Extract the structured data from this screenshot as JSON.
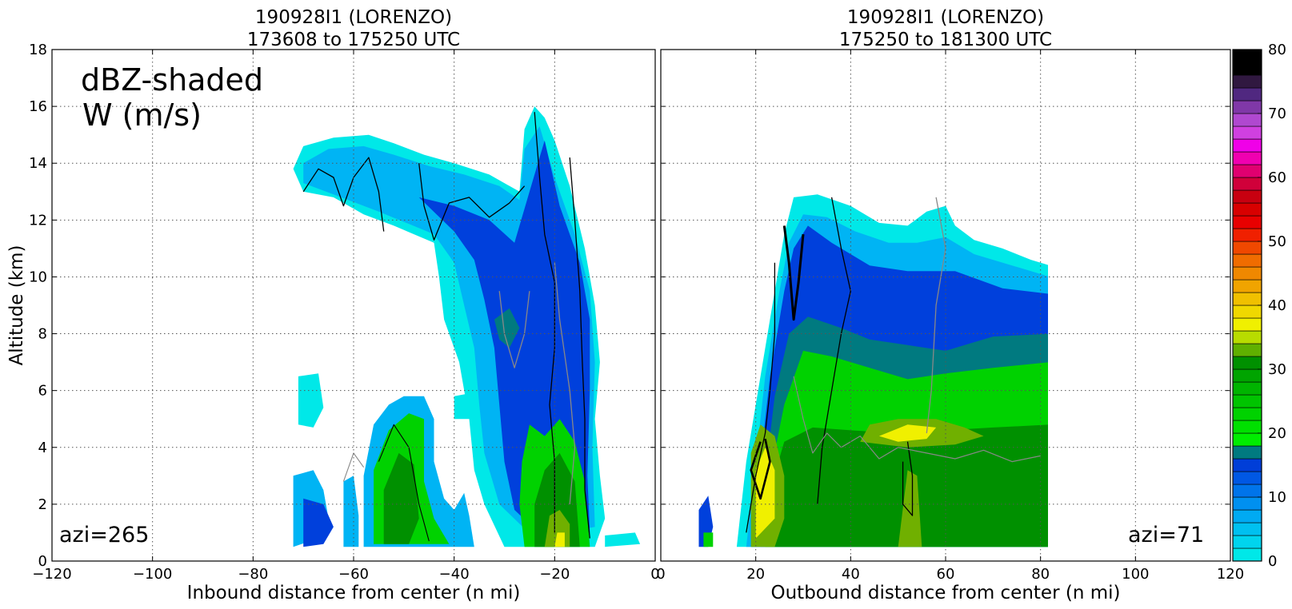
{
  "chart_data": [
    {
      "type": "heatmap",
      "panel": "inbound",
      "title_line1": "190928I1 (LORENZO)",
      "title_line2": "173608 to 175250 UTC",
      "xlabel": "Inbound distance from center (n mi)",
      "ylabel": "Altitude (km)",
      "xlim": [
        -120,
        0
      ],
      "ylim": [
        0,
        18
      ],
      "xticks": [
        -120,
        -100,
        -80,
        -60,
        -40,
        -20,
        0
      ],
      "yticks": [
        0,
        2,
        4,
        6,
        8,
        10,
        12,
        14,
        16,
        18
      ],
      "annotation_line1": "dBZ-shaded",
      "annotation_line2": "W (m/s)",
      "azimuth_label": "azi=265",
      "grid": true,
      "field": "reflectivity (dBZ) shaded with vertical velocity W contours",
      "approx_echo_extent": {
        "x": [
          -72,
          -3
        ],
        "y": [
          0.5,
          16
        ]
      },
      "approx_max_dbz": 33
    },
    {
      "type": "heatmap",
      "panel": "outbound",
      "title_line1": "190928I1 (LORENZO)",
      "title_line2": "175250 to 181300 UTC",
      "xlabel": "Outbound distance from center (n mi)",
      "xlim": [
        0,
        120
      ],
      "ylim": [
        0,
        18
      ],
      "xticks": [
        0,
        20,
        40,
        60,
        80,
        100,
        120
      ],
      "azimuth_label": "azi=71",
      "grid": true,
      "approx_echo_extent": {
        "x": [
          7,
          82
        ],
        "y": [
          0.5,
          13
        ]
      },
      "approx_max_dbz": 38
    }
  ],
  "colorbar": {
    "min": 0,
    "max": 80,
    "step": 2,
    "tick_labels": [
      "0",
      "10",
      "20",
      "30",
      "40",
      "50",
      "60",
      "70",
      "80"
    ],
    "tick_values": [
      0,
      10,
      20,
      30,
      40,
      50,
      60,
      70,
      80
    ],
    "colors": [
      "#00e8e8",
      "#00d4ee",
      "#00c0f0",
      "#00aaf2",
      "#0090f0",
      "#0074ea",
      "#0058e4",
      "#003ed8",
      "#007a80",
      "#00ec00",
      "#00e000",
      "#00d200",
      "#00c400",
      "#00b400",
      "#00a400",
      "#009000",
      "#60b000",
      "#b8dc00",
      "#f0f000",
      "#f0d800",
      "#f0c000",
      "#f0a400",
      "#f08800",
      "#f06c00",
      "#f04800",
      "#f02000",
      "#e80000",
      "#d80000",
      "#c80010",
      "#d0003a",
      "#e00070",
      "#f000b0",
      "#f000e8",
      "#d040e0",
      "#b048d0",
      "#8038a8",
      "#502880",
      "#301840",
      "#000000",
      "#000000"
    ]
  },
  "palette": {
    "cyan": "#00e8e8",
    "sky": "#00b4f4",
    "blue": "#0040dc",
    "teal": "#007a80",
    "green": "#00d200",
    "dkgreen": "#009000",
    "olive": "#70b000",
    "yellow": "#f0f000",
    "contour_pos": "#000000",
    "contour_neg": "#888888"
  }
}
